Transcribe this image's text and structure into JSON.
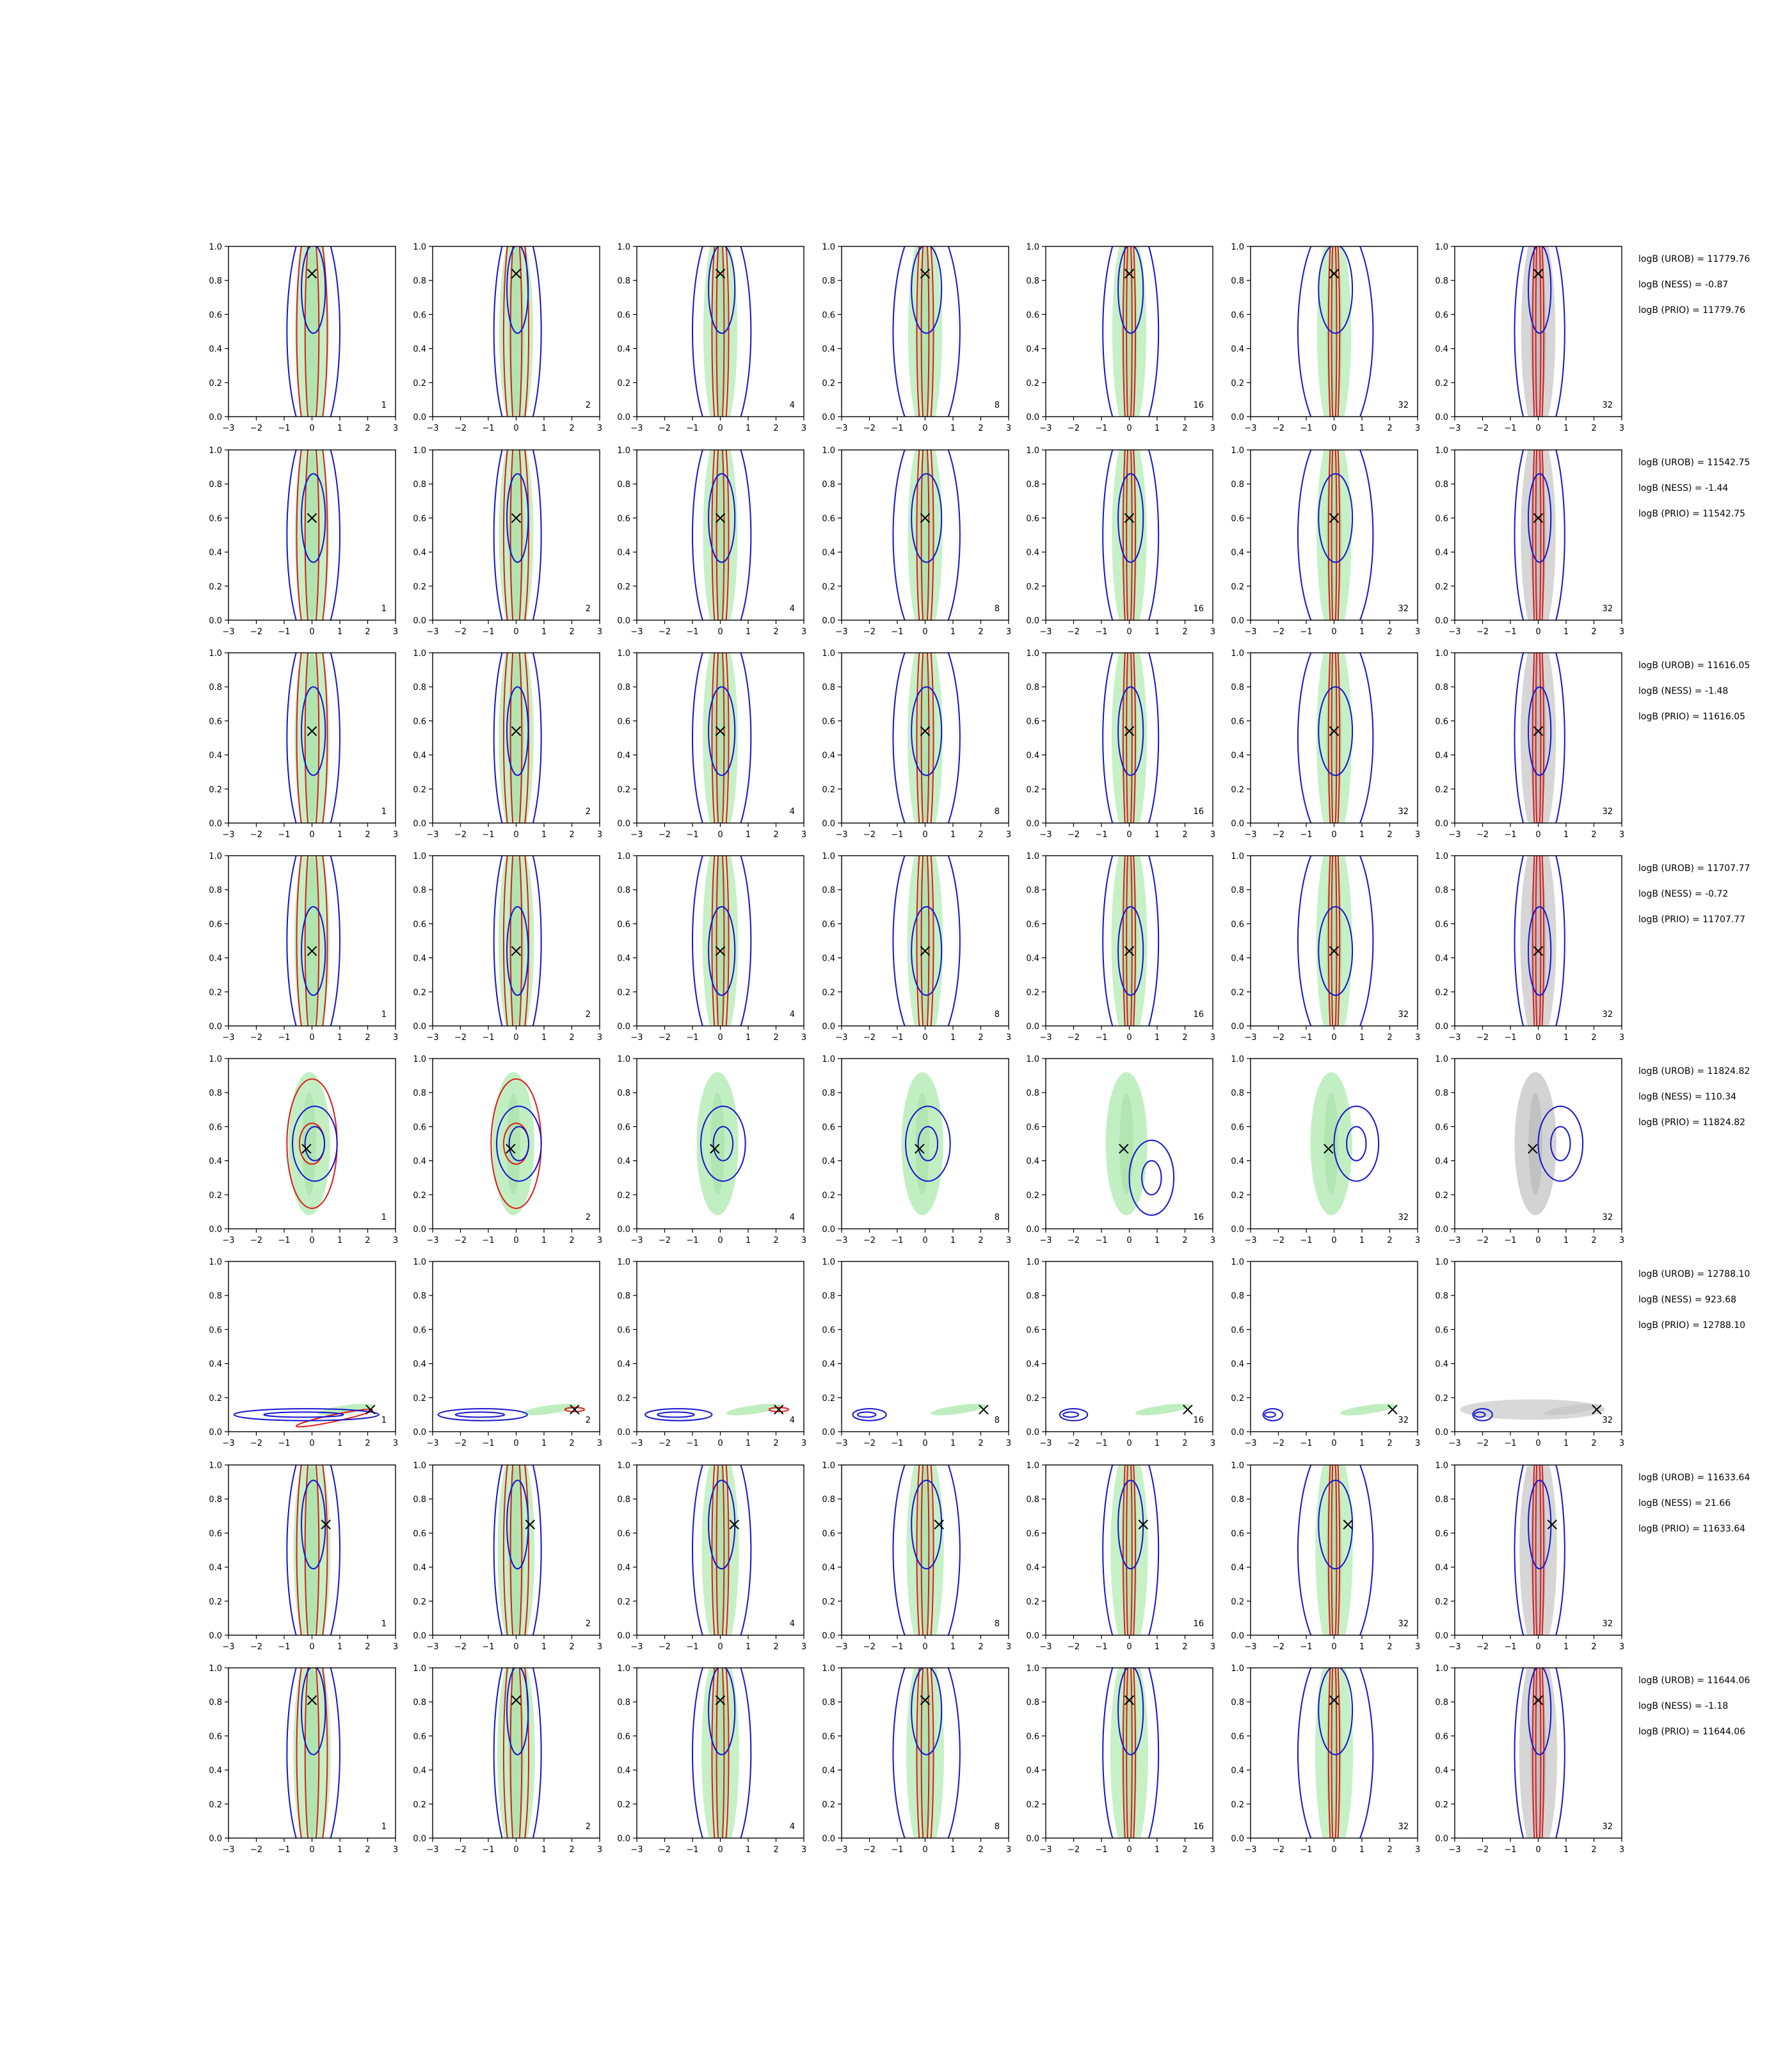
{
  "chart_data": {
    "type": "contour",
    "layout": {
      "rows": 8,
      "cols": 7
    },
    "xlim": [
      -3,
      3
    ],
    "ylim": [
      0.0,
      1.0
    ],
    "x_ticks": [
      "−3",
      "−2",
      "−1",
      "0",
      "1",
      "2",
      "3"
    ],
    "y_ticks": [
      "0.0",
      "0.2",
      "0.4",
      "0.6",
      "0.8",
      "1.0"
    ],
    "column_labels": [
      "1",
      "2",
      "4",
      "8",
      "16",
      "32",
      "32"
    ],
    "colors": {
      "green_fill": "#b3ebb3",
      "grey_fill": "#c8c8c8",
      "red": "#dd1c1c",
      "blue": "#1515d0",
      "marker": "#000000"
    },
    "rows": [
      {
        "truth": [
          0.0,
          0.84
        ],
        "mode": "vertical",
        "logB": [
          "logB (UROB) = 11779.76",
          "logB (NESS) = -0.87",
          "logB (PRIO) = 11779.76"
        ]
      },
      {
        "truth": [
          0.0,
          0.6
        ],
        "mode": "vertical",
        "logB": [
          "logB (UROB) = 11542.75",
          "logB (NESS) = -1.44",
          "logB (PRIO) = 11542.75"
        ]
      },
      {
        "truth": [
          0.0,
          0.54
        ],
        "mode": "vertical",
        "logB": [
          "logB (UROB) = 11616.05",
          "logB (NESS) = -1.48",
          "logB (PRIO) = 11616.05"
        ]
      },
      {
        "truth": [
          0.0,
          0.44
        ],
        "mode": "vertical",
        "logB": [
          "logB (UROB) = 11707.77",
          "logB (NESS) = -0.72",
          "logB (PRIO) = 11707.77"
        ]
      },
      {
        "truth": [
          -0.2,
          0.47
        ],
        "mode": "compact",
        "logB": [
          "logB (UROB) = 11824.82",
          "logB (NESS) = 110.34",
          "logB (PRIO) = 11824.82"
        ]
      },
      {
        "truth": [
          2.1,
          0.13
        ],
        "mode": "tilted",
        "logB": [
          "logB (UROB) = 12788.10",
          "logB (NESS) = 923.68",
          "logB (PRIO) = 12788.10"
        ]
      },
      {
        "truth": [
          0.5,
          0.65
        ],
        "mode": "vertical",
        "logB": [
          "logB (UROB) = 11633.64",
          "logB (NESS) = 21.66",
          "logB (PRIO) = 11633.64"
        ]
      },
      {
        "truth": [
          0.0,
          0.81
        ],
        "mode": "vertical",
        "logB": [
          "logB (UROB) = 11644.06",
          "logB (NESS) = -1.18",
          "logB (PRIO) = 11644.06"
        ]
      }
    ]
  }
}
